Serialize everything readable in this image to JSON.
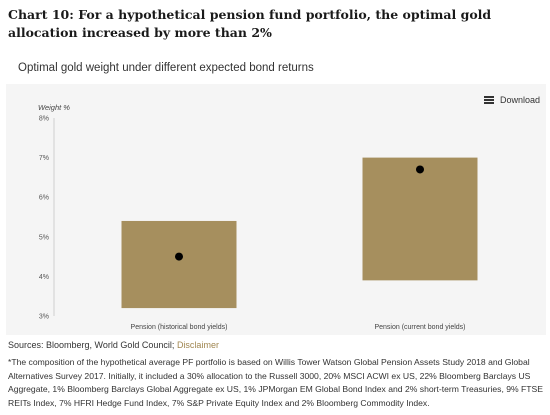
{
  "header": {
    "title": "Chart 10: For a hypothetical pension fund portfolio, the optimal gold allocation increased by more than 2%",
    "subtitle": "Optimal gold weight under different expected bond returns"
  },
  "toolbar": {
    "download_label": "Download",
    "download_icon": "menu-icon"
  },
  "chart_data": {
    "type": "bar",
    "subtype": "floating-range-with-point",
    "ylabel": "Weight %",
    "ylim": [
      3,
      8
    ],
    "yticks": [
      "8%",
      "7%",
      "6%",
      "5%",
      "4%",
      "3%"
    ],
    "ytick_values": [
      8,
      7,
      6,
      5,
      4,
      3
    ],
    "categories": [
      "Pension (historical bond yields)",
      "Pension (current bond yields)"
    ],
    "ranges": [
      [
        3.2,
        5.4
      ],
      [
        3.9,
        7.0
      ]
    ],
    "points": [
      4.5,
      6.7
    ],
    "bar_color": "#a68f5e",
    "point_color": "#000000",
    "grid": false
  },
  "footer": {
    "sources_label": "Sources: Bloomberg, World Gold Council;",
    "disclaimer_label": "Disclaimer",
    "footnote": "*The composition of the hypothetical average PF portfolio is based on Willis Tower Watson Global Pension Assets Study 2018 and Global Alternatives Survey 2017. Initially, it included a 30% allocation to the Russell 3000, 20% MSCI ACWI ex US, 22% Bloomberg Barclays US Aggregate, 1% Bloomberg Barclays Global Aggregate ex US, 1% JPMorgan EM Global Bond Index and 2% short-term Treasuries, 9% FTSE REITs Index, 7% HFRI Hedge Fund Index, 7% S&P Private Equity Index and 2% Bloomberg Commodity Index."
  }
}
